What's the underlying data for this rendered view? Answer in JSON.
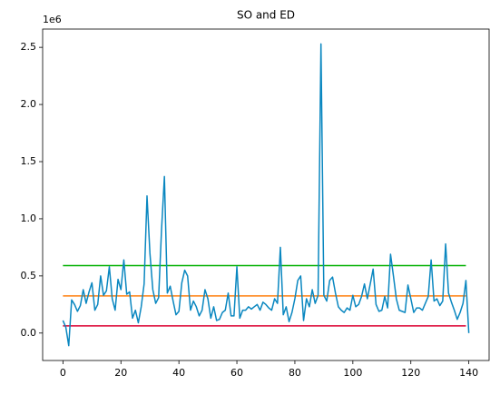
{
  "chart_data": {
    "type": "line",
    "title": "SO and ED",
    "y_offset_label": "1e6",
    "xlim": [
      -7,
      147
    ],
    "xticks": [
      0,
      20,
      40,
      60,
      80,
      100,
      120,
      140
    ],
    "ylim": [
      -240000,
      2660000
    ],
    "yticks": [
      {
        "value": 0,
        "label": "0.0"
      },
      {
        "value": 500000,
        "label": "0.5"
      },
      {
        "value": 1000000,
        "label": "1.0"
      },
      {
        "value": 1500000,
        "label": "1.5"
      },
      {
        "value": 2000000,
        "label": "2.0"
      },
      {
        "value": 2500000,
        "label": "2.5"
      }
    ],
    "series": [
      {
        "color": "#0a87c0",
        "x": [
          0,
          1,
          2,
          3,
          4,
          5,
          6,
          7,
          8,
          9,
          10,
          11,
          12,
          13,
          14,
          15,
          16,
          17,
          18,
          19,
          20,
          21,
          22,
          23,
          24,
          25,
          26,
          27,
          28,
          29,
          30,
          31,
          32,
          33,
          34,
          35,
          36,
          37,
          38,
          39,
          40,
          41,
          42,
          43,
          44,
          45,
          46,
          47,
          48,
          49,
          50,
          51,
          52,
          53,
          54,
          55,
          56,
          57,
          58,
          59,
          60,
          61,
          62,
          63,
          64,
          65,
          66,
          67,
          68,
          69,
          70,
          71,
          72,
          73,
          74,
          75,
          76,
          77,
          78,
          79,
          80,
          81,
          82,
          83,
          84,
          85,
          86,
          87,
          88,
          89,
          90,
          91,
          92,
          93,
          94,
          95,
          96,
          97,
          98,
          99,
          100,
          101,
          102,
          103,
          104,
          105,
          106,
          107,
          108,
          109,
          110,
          111,
          112,
          113,
          114,
          115,
          116,
          117,
          118,
          119,
          120,
          121,
          122,
          123,
          124,
          125,
          126,
          127,
          128,
          129,
          130,
          131,
          132,
          133,
          134,
          135,
          136,
          137,
          138,
          139,
          140
        ],
        "values": [
          110000,
          50000,
          -110000,
          290000,
          250000,
          190000,
          240000,
          380000,
          260000,
          360000,
          440000,
          200000,
          250000,
          500000,
          330000,
          370000,
          580000,
          300000,
          200000,
          470000,
          380000,
          640000,
          340000,
          360000,
          130000,
          200000,
          90000,
          230000,
          430000,
          1200000,
          700000,
          380000,
          260000,
          310000,
          900000,
          1370000,
          350000,
          410000,
          280000,
          160000,
          190000,
          440000,
          550000,
          500000,
          200000,
          280000,
          230000,
          150000,
          200000,
          380000,
          300000,
          130000,
          230000,
          110000,
          120000,
          180000,
          200000,
          350000,
          150000,
          150000,
          580000,
          130000,
          200000,
          200000,
          230000,
          210000,
          230000,
          250000,
          200000,
          270000,
          250000,
          220000,
          200000,
          300000,
          260000,
          750000,
          160000,
          230000,
          100000,
          180000,
          300000,
          460000,
          500000,
          110000,
          300000,
          230000,
          380000,
          260000,
          330000,
          2530000,
          330000,
          280000,
          460000,
          490000,
          350000,
          230000,
          200000,
          180000,
          220000,
          200000,
          330000,
          230000,
          250000,
          320000,
          430000,
          300000,
          430000,
          560000,
          250000,
          190000,
          200000,
          320000,
          220000,
          690000,
          500000,
          300000,
          200000,
          190000,
          180000,
          420000,
          300000,
          180000,
          220000,
          220000,
          200000,
          260000,
          320000,
          640000,
          280000,
          300000,
          240000,
          280000,
          780000,
          350000,
          270000,
          200000,
          120000,
          180000,
          260000,
          460000,
          0
        ]
      },
      {
        "color": "#00b000",
        "x": [
          0,
          139
        ],
        "values": [
          590000,
          590000
        ]
      },
      {
        "color": "#ff7f0e",
        "x": [
          0,
          139
        ],
        "values": [
          325000,
          325000
        ]
      },
      {
        "color": "#dc0030",
        "x": [
          0,
          139
        ],
        "values": [
          63000,
          63000
        ]
      }
    ]
  }
}
